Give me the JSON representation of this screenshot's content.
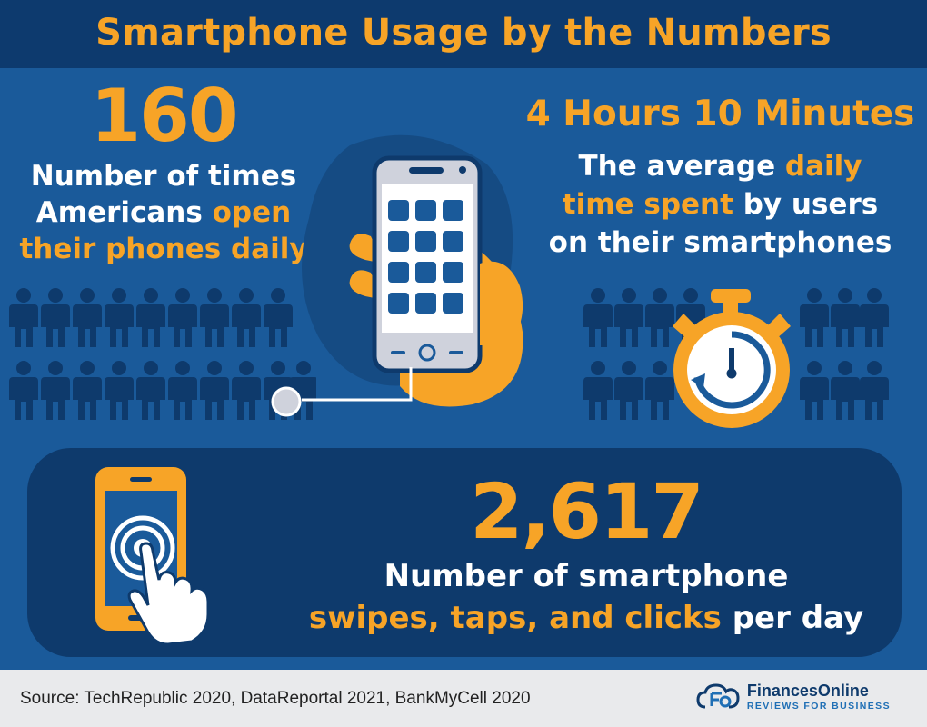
{
  "header": {
    "title": "Smartphone Usage by the Numbers"
  },
  "left_stat": {
    "number": "160",
    "line1": "Number of times",
    "line2_a": "Americans ",
    "line2_b": "open",
    "line3": "their phones daily"
  },
  "right_stat": {
    "number": "4 Hours 10 Minutes",
    "line1_a": "The average ",
    "line1_b": "daily",
    "line2_a": "time spent",
    "line2_b": " by users",
    "line3": "on their smartphones"
  },
  "bottom_stat": {
    "number": "2,617",
    "line1": "Number of smartphone",
    "line2_a": "swipes, taps, and clicks",
    "line2_b": " per day"
  },
  "footer": {
    "source": "Source: TechRepublic 2020, DataReportal 2021, BankMyCell 2020",
    "brand_name": "FinancesOnline",
    "brand_tagline": "REVIEWS FOR BUSINESS"
  },
  "icons": [
    "people-icon",
    "smartphone-icon",
    "hand-icon",
    "stopwatch-icon",
    "tap-phone-icon",
    "pointer-hand-icon",
    "brand-logo-icon"
  ],
  "colors": {
    "background": "#1a5a9a",
    "header": "#0d3a6e",
    "accent": "#f7a427",
    "dark_panel": "#0e3a6c",
    "people": "#0e3a6c",
    "footer": "#e9eaec"
  }
}
